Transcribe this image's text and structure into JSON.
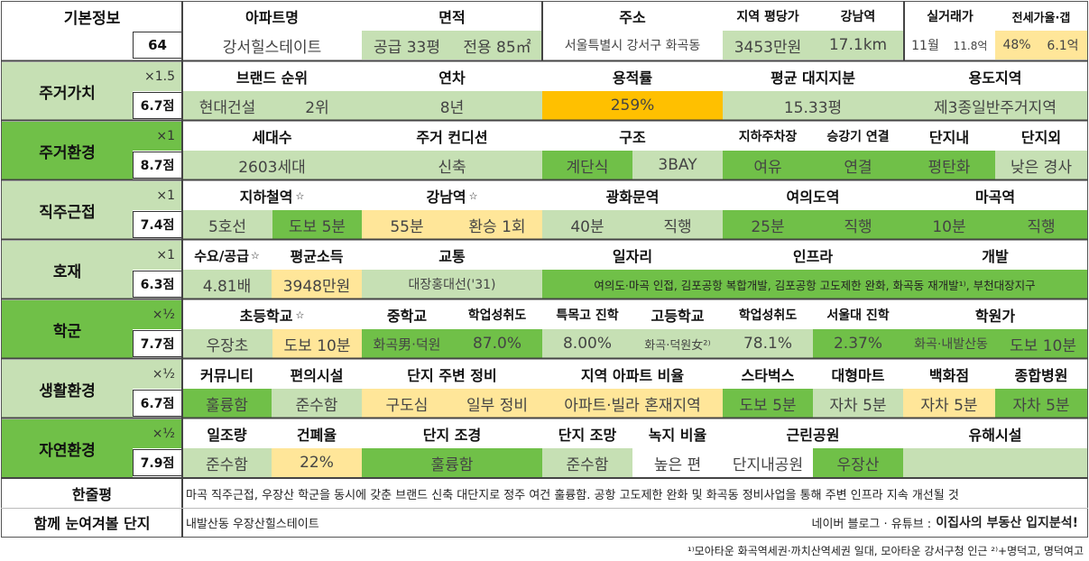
{
  "basic": {
    "label": "기본정보",
    "score": "64",
    "h_apt": "아파트명",
    "apt": "강서힐스테이트",
    "h_area": "면적",
    "area_supply": "공급 33평",
    "area_exclusive": "전용 85㎡",
    "h_addr": "주소",
    "addr": "서울특별시 강서구 화곡동",
    "h_pyeong": "지역 평당가",
    "pyeong": "3453만원",
    "h_gangnam": "강남역",
    "gangnam": "17.1km",
    "h_trade": "실거래가",
    "trade_month": "11월",
    "trade_price": "11.8억",
    "h_jeonse": "전세가율·갭",
    "jeonse_rate": "48%",
    "gap": "6.1억"
  },
  "rows": [
    {
      "label": "주거가치",
      "mult": "×1.5",
      "score": "6.7점"
    },
    {
      "label": "주거환경",
      "mult": "×1",
      "score": "8.7점"
    },
    {
      "label": "직주근접",
      "mult": "×1",
      "score": "7.4점"
    },
    {
      "label": "호재",
      "mult": "×1",
      "score": "6.3점"
    },
    {
      "label": "학군",
      "mult": "×½",
      "score": "7.7점"
    },
    {
      "label": "생활환경",
      "mult": "×½",
      "score": "6.7점"
    },
    {
      "label": "자연환경",
      "mult": "×½",
      "score": "7.9점"
    }
  ],
  "value": {
    "h_brand": "브랜드 순위",
    "brand": "현대건설",
    "brand_rank": "2위",
    "h_age": "연차",
    "age": "8년",
    "h_far": "용적률",
    "far": "259%",
    "h_land": "평균 대지지분",
    "land": "15.33평",
    "h_zone": "용도지역",
    "zone": "제3종일반주거지역"
  },
  "env": {
    "h_units": "세대수",
    "units": "2603세대",
    "h_cond": "주거 컨디션",
    "cond": "신축",
    "h_struct": "구조",
    "struct1": "계단식",
    "struct2": "3BAY",
    "h_park": "지하주차장",
    "park": "여유",
    "h_elev": "승강기 연결",
    "elev": "연결",
    "h_in": "단지내",
    "in": "평탄화",
    "h_out": "단지외",
    "out": "낮은 경사"
  },
  "commute": {
    "h_subway": "지하철역",
    "subway_line": "5호선",
    "subway_walk": "도보 5분",
    "h_gangnam": "강남역",
    "gangnam_time": "55분",
    "gangnam_transfer": "환승 1회",
    "h_gwanghwamun": "광화문역",
    "gwanghwamun_time": "40분",
    "gwanghwamun_type": "직행",
    "h_yeouido": "여의도역",
    "yeouido_time": "25분",
    "yeouido_type": "직행",
    "h_magok": "마곡역",
    "magok_time": "10분",
    "magok_type": "직행",
    "star": "☆"
  },
  "bonus": {
    "h_supply": "수요/공급",
    "supply": "4.81배",
    "h_income": "평균소득",
    "income": "3948만원",
    "h_traffic": "교통",
    "traffic": "대장홍대선('31)",
    "h_jobs": "일자리",
    "h_infra": "인프라",
    "h_dev": "개발",
    "detail": "여의도·마곡 인접, 김포공항 복합개발, 김포공항 고도제한 완화, 화곡동 재개발¹⁾, 부천대장지구"
  },
  "school": {
    "h_elem": "초등학교",
    "elem": "우장초",
    "elem_walk": "도보 10분",
    "h_mid": "중학교",
    "mid": "화곡男·덕원",
    "h_mid_rate": "학업성취도",
    "mid_rate": "87.0%",
    "h_special": "특목고 진학",
    "special": "8.00%",
    "h_high": "고등학교",
    "high": "화곡·덕원女²⁾",
    "h_high_rate": "학업성취도",
    "high_rate": "78.1%",
    "h_snu": "서울대 진학",
    "snu": "2.37%",
    "h_academy": "학원가",
    "academy": "화곡·내발산동",
    "academy_walk": "도보 10분"
  },
  "life": {
    "h_comm": "커뮤니티",
    "comm": "훌륭함",
    "h_conv": "편의시설",
    "conv": "준수함",
    "h_around": "단지 주변 정비",
    "around1": "구도심",
    "around2": "일부 정비",
    "h_ratio": "지역 아파트 비율",
    "ratio": "아파트·빌라 혼재지역",
    "h_star": "스타벅스",
    "star": "도보 5분",
    "h_mart": "대형마트",
    "mart": "자차 5분",
    "h_dept": "백화점",
    "dept": "자차 5분",
    "h_hosp": "종합병원",
    "hosp": "자차 5분"
  },
  "nature": {
    "h_sun": "일조량",
    "sun": "준수함",
    "h_bcr": "건폐율",
    "bcr": "22%",
    "h_land": "단지 조경",
    "land": "훌륭함",
    "h_view": "단지 조망",
    "view": "준수함",
    "h_green": "녹지 비율",
    "green": "높은 편",
    "h_park": "근린공원",
    "park1": "단지내공원",
    "park2": "우장산",
    "h_harm": "유해시설",
    "harm": ""
  },
  "summary": {
    "label": "한줄평",
    "text": "마곡 직주근접, 우장산 학군을 동시에 갖춘 브랜드 신축 대단지로 정주 여건 훌륭함. 공항 고도제한 완화 및 화곡동 정비사업을 통해 주변 인프라 지속 개선될 것",
    "label2": "함께 눈여겨볼 단지",
    "related": "내발산동 우장산힐스테이트",
    "source": "네이버 블로그 · 유튜브 :",
    "brand": "이집사의 부동산 입지분석!"
  },
  "footnote": "¹⁾모아타운 화곡역세권·까치산역세권 일대, 모아타운 강서구청 인근 ²⁾+명덕고, 명덕여고"
}
